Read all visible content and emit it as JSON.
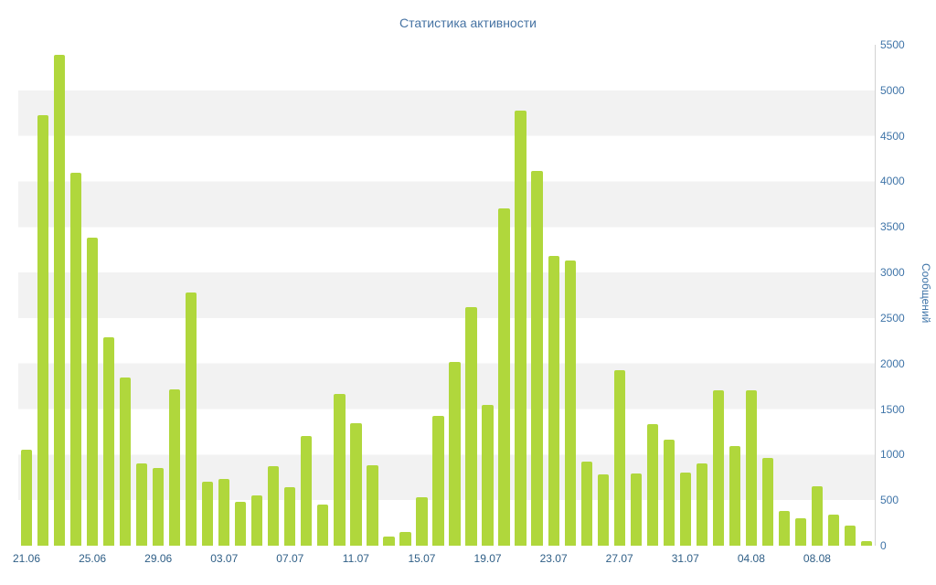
{
  "chart_data": {
    "type": "bar",
    "title": "Статистика активности",
    "xlabel": "",
    "ylabel": "Сообщений",
    "ylim": [
      0,
      5500
    ],
    "ytick_step": 500,
    "yticks": [
      0,
      500,
      1000,
      1500,
      2000,
      2500,
      3000,
      3500,
      4000,
      4500,
      5000,
      5500
    ],
    "xtick_labels": [
      "21.06",
      "25.06",
      "29.06",
      "03.07",
      "07.07",
      "11.07",
      "15.07",
      "19.07",
      "23.07",
      "27.07",
      "31.07",
      "04.08",
      "08.08"
    ],
    "xtick_every": 4,
    "grid": "horizontal-bands-every-500",
    "legend": "none",
    "bar_color": "#b0d73c",
    "band_color": "#f2f2f2",
    "categories": [
      "21.06",
      "22.06",
      "23.06",
      "24.06",
      "25.06",
      "26.06",
      "27.06",
      "28.06",
      "29.06",
      "30.06",
      "01.07",
      "02.07",
      "03.07",
      "04.07",
      "05.07",
      "06.07",
      "07.07",
      "08.07",
      "09.07",
      "10.07",
      "11.07",
      "12.07",
      "13.07",
      "14.07",
      "15.07",
      "16.07",
      "17.07",
      "18.07",
      "19.07",
      "20.07",
      "21.07",
      "22.07",
      "23.07",
      "24.07",
      "25.07",
      "26.07",
      "27.07",
      "28.07",
      "29.07",
      "30.07",
      "31.07",
      "01.08",
      "02.08",
      "03.08",
      "04.08",
      "05.08",
      "06.08",
      "07.08",
      "08.08",
      "09.08",
      "10.08",
      "11.08"
    ],
    "values": [
      1050,
      4730,
      5390,
      4100,
      3380,
      2290,
      1850,
      900,
      850,
      1720,
      2780,
      700,
      730,
      480,
      550,
      870,
      640,
      1200,
      450,
      1670,
      1350,
      880,
      100,
      150,
      530,
      1430,
      2020,
      2620,
      1550,
      3700,
      4780,
      4120,
      3180,
      3130,
      920,
      780,
      1930,
      790,
      1340,
      1160,
      800,
      900,
      1710,
      1090,
      1710,
      960,
      380,
      300,
      650,
      340,
      220,
      50
    ]
  }
}
